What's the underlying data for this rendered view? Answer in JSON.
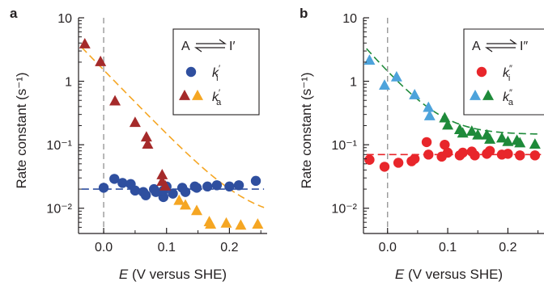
{
  "chart_data": [
    {
      "panel": "a",
      "type": "scatter",
      "xlabel_var": "E",
      "xlabel_rest": " (V versus SHE)",
      "ylabel": "Rate constant (s⁻¹)",
      "xlim": [
        -0.04,
        0.26
      ],
      "ylim": [
        0.004,
        10
      ],
      "yscale": "log",
      "xticks": [
        "0.0",
        "0.1",
        "0.2"
      ],
      "xtick_values": [
        0.0,
        0.1,
        0.2
      ],
      "yticks": [
        "10⁻²",
        "10⁻¹",
        "1",
        "10"
      ],
      "ytick_values": [
        0.01,
        0.1,
        1,
        10
      ],
      "vline_x": 0.0,
      "legend": {
        "placement": "top-right",
        "title_left": "A",
        "title_right": "I′",
        "labels": [
          "k",
          "k"
        ],
        "subs": [
          "i",
          "a"
        ],
        "primes": [
          "′",
          "′"
        ]
      },
      "series": [
        {
          "symbol": "circle",
          "colors": [
            "#2f4f9f"
          ],
          "points": [
            [
              0.0,
              0.021
            ],
            [
              0.017,
              0.029
            ],
            [
              0.03,
              0.025
            ],
            [
              0.043,
              0.024
            ],
            [
              0.05,
              0.019
            ],
            [
              0.063,
              0.018
            ],
            [
              0.067,
              0.016
            ],
            [
              0.08,
              0.02
            ],
            [
              0.083,
              0.018
            ],
            [
              0.095,
              0.015
            ],
            [
              0.095,
              0.019
            ],
            [
              0.1,
              0.022
            ],
            [
              0.11,
              0.017
            ],
            [
              0.125,
              0.021
            ],
            [
              0.13,
              0.018
            ],
            [
              0.145,
              0.022
            ],
            [
              0.148,
              0.021
            ],
            [
              0.165,
              0.022
            ],
            [
              0.18,
              0.023
            ],
            [
              0.2,
              0.022
            ],
            [
              0.215,
              0.023
            ],
            [
              0.242,
              0.027
            ]
          ],
          "fit": {
            "type": "constant",
            "value": 0.02,
            "color": "#2f4f9f"
          }
        },
        {
          "symbol": "triangle",
          "colors": [
            "#a52a2a",
            "#f5a623"
          ],
          "switch_x": 0.11,
          "points": [
            [
              -0.03,
              3.8
            ],
            [
              -0.005,
              2.0
            ],
            [
              0.018,
              0.48
            ],
            [
              0.05,
              0.22
            ],
            [
              0.068,
              0.13
            ],
            [
              0.07,
              0.1
            ],
            [
              0.093,
              0.033
            ],
            [
              0.093,
              0.026
            ],
            [
              0.098,
              0.022
            ],
            [
              0.12,
              0.013
            ],
            [
              0.13,
              0.011
            ],
            [
              0.148,
              0.009
            ],
            [
              0.168,
              0.006
            ],
            [
              0.17,
              0.0055
            ],
            [
              0.195,
              0.0057
            ],
            [
              0.218,
              0.0053
            ],
            [
              0.245,
              0.0055
            ]
          ],
          "fit": {
            "type": "decay",
            "a": 1.5,
            "b": 23.5,
            "c": 0.0065,
            "color": "#f5a623"
          }
        }
      ]
    },
    {
      "panel": "b",
      "type": "scatter",
      "xlabel_var": "E",
      "xlabel_rest": " (V versus SHE)",
      "ylabel": "Rate constant (s⁻¹)",
      "xlim": [
        -0.04,
        0.26
      ],
      "ylim": [
        0.004,
        10
      ],
      "yscale": "log",
      "xticks": [
        "0.0",
        "0.1",
        "0.2"
      ],
      "xtick_values": [
        0.0,
        0.1,
        0.2
      ],
      "yticks": [
        "10⁻²",
        "10⁻¹",
        "1",
        "10"
      ],
      "ytick_values": [
        0.01,
        0.1,
        1,
        10
      ],
      "vline_x": 0.0,
      "legend": {
        "placement": "top-right",
        "title_left": "A",
        "title_right": "I″",
        "labels": [
          "k",
          "k"
        ],
        "subs": [
          "i",
          "a"
        ],
        "primes": [
          "″",
          "″"
        ]
      },
      "series": [
        {
          "symbol": "circle",
          "colors": [
            "#e8262b"
          ],
          "points": [
            [
              -0.03,
              0.058
            ],
            [
              -0.005,
              0.045
            ],
            [
              0.018,
              0.052
            ],
            [
              0.04,
              0.055
            ],
            [
              0.045,
              0.06
            ],
            [
              0.065,
              0.11
            ],
            [
              0.068,
              0.07
            ],
            [
              0.09,
              0.065
            ],
            [
              0.095,
              0.1
            ],
            [
              0.1,
              0.075
            ],
            [
              0.12,
              0.068
            ],
            [
              0.125,
              0.075
            ],
            [
              0.14,
              0.078
            ],
            [
              0.145,
              0.068
            ],
            [
              0.165,
              0.072
            ],
            [
              0.17,
              0.08
            ],
            [
              0.19,
              0.07
            ],
            [
              0.2,
              0.072
            ],
            [
              0.22,
              0.068
            ],
            [
              0.245,
              0.068
            ]
          ],
          "fit": {
            "type": "constant",
            "value": 0.07,
            "color": "#e8262b"
          }
        },
        {
          "symbol": "triangle",
          "colors": [
            "#4da3db",
            "#1e8a3a"
          ],
          "switch_x": 0.09,
          "points": [
            [
              -0.03,
              2.1
            ],
            [
              -0.005,
              0.85
            ],
            [
              0.015,
              1.15
            ],
            [
              0.045,
              0.6
            ],
            [
              0.068,
              0.38
            ],
            [
              0.07,
              0.28
            ],
            [
              0.095,
              0.26
            ],
            [
              0.1,
              0.2
            ],
            [
              0.12,
              0.17
            ],
            [
              0.125,
              0.15
            ],
            [
              0.14,
              0.16
            ],
            [
              0.15,
              0.14
            ],
            [
              0.165,
              0.14
            ],
            [
              0.17,
              0.12
            ],
            [
              0.19,
              0.125
            ],
            [
              0.2,
              0.11
            ],
            [
              0.215,
              0.115
            ],
            [
              0.22,
              0.105
            ],
            [
              0.245,
              0.1
            ]
          ],
          "fit": {
            "type": "decay",
            "a": 1.3,
            "b": 25.0,
            "c": 0.145,
            "color": "#1e8a3a"
          }
        }
      ]
    }
  ],
  "colors": {
    "axis": "#231f20",
    "vline": "#999999"
  }
}
